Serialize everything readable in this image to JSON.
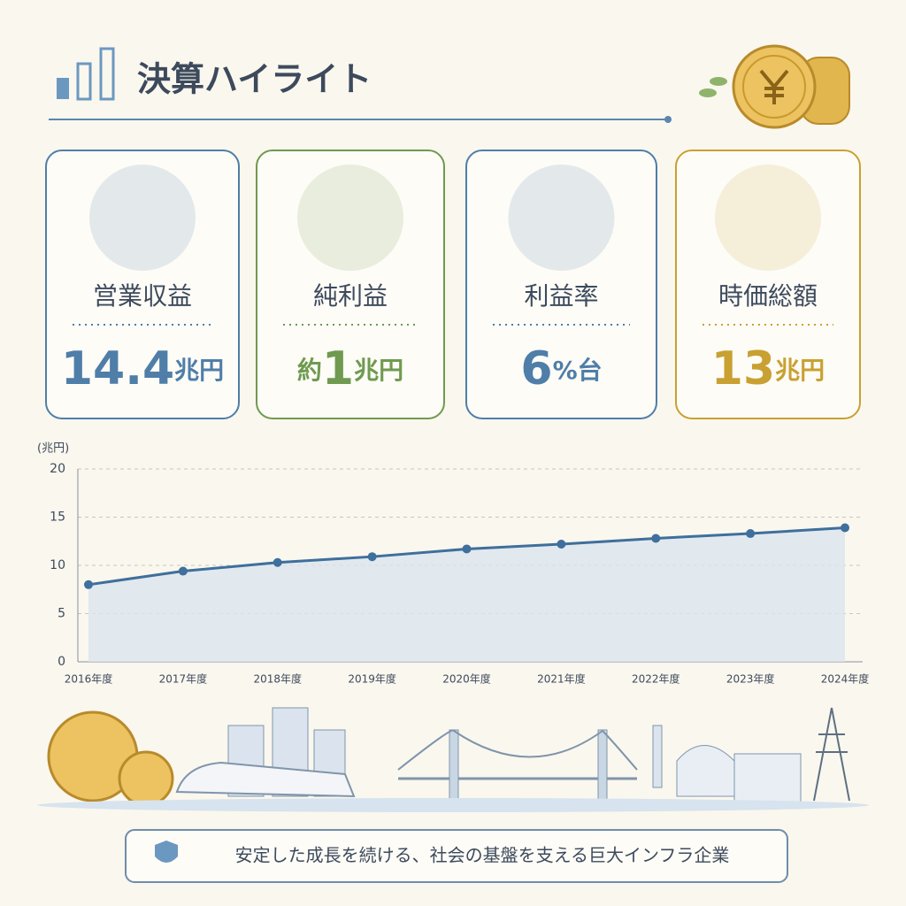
{
  "header": {
    "title": "決算ハイライト"
  },
  "cards": [
    {
      "label": "営業収益",
      "value": {
        "main": "14.4",
        "suffix": "兆円"
      },
      "color": "#4f7ea8"
    },
    {
      "label": "純利益",
      "value": {
        "prefix": "約",
        "main": "1",
        "suffix": "兆円"
      },
      "color": "#6f9a4f"
    },
    {
      "label": "利益率",
      "value": {
        "main": "6",
        "suffix": "%台"
      },
      "color": "#4f7ea8"
    },
    {
      "label": "時価総額",
      "value": {
        "main": "13",
        "suffix": "兆円"
      },
      "color": "#c9a032"
    }
  ],
  "chart_data": {
    "type": "line",
    "y_label": "(兆円)",
    "categories": [
      "2016年度",
      "2017年度",
      "2018年度",
      "2019年度",
      "2020年度",
      "2021年度",
      "2022年度",
      "2023年度",
      "2024年度"
    ],
    "series": [
      {
        "name": "営業収益",
        "color": "#3f6f9c",
        "values": [
          8.0,
          9.4,
          10.3,
          10.9,
          11.7,
          12.2,
          12.8,
          13.3,
          13.9
        ]
      }
    ],
    "ylim": [
      0,
      20
    ],
    "yticks": [
      0,
      5,
      10,
      15,
      20
    ],
    "grid": true
  },
  "footer": {
    "text": "安定した成長を続ける、社会の基盤を支える巨大インフラ企業"
  }
}
